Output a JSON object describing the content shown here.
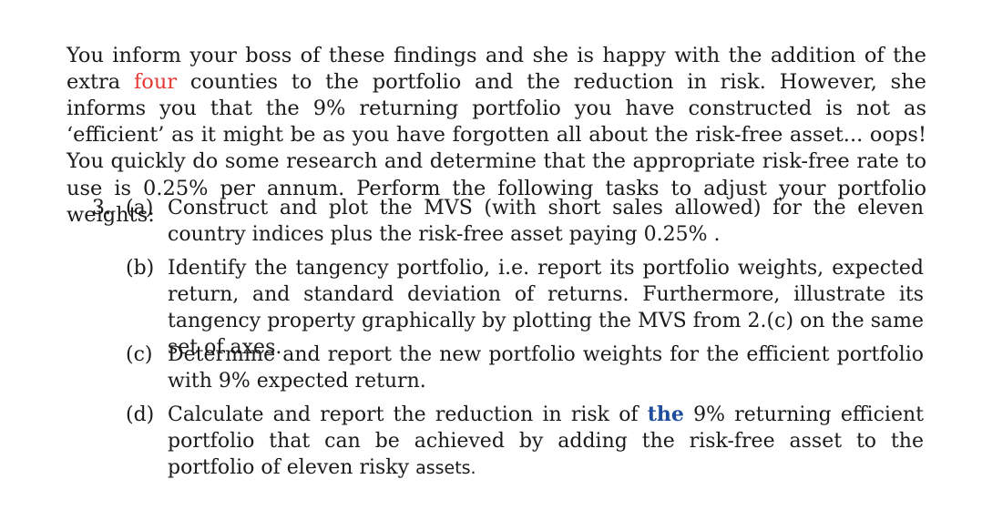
{
  "document": {
    "intro": {
      "part1": "You inform your boss of these findings and she is happy with the addition of the extra",
      "highlight": "four",
      "part2": "counties to the portfolio and the reduction in risk. However, she informs you that the 9% returning portfolio you have constructed is not as ‘efficient’ as it might be as you have forgotten all about the risk-free asset... oops! You quickly do some research and determine that the appropriate risk-free rate to use is 0.25% per annum. Perform the following tasks to adjust your portfolio weights:"
    },
    "question": {
      "number": "3.",
      "items": [
        {
          "label": "(a)",
          "text": "Construct and plot the MVS (with short sales allowed) for the eleven country indices plus the risk-free asset paying 0.25% ."
        },
        {
          "label": "(b)",
          "text": "Identify the tangency portfolio, i.e. report its portfolio weights, expected return, and standard deviation of returns. Furthermore, illustrate its tangency property graphically by plotting the MVS from 2.(c) on the same set of axes."
        },
        {
          "label": "(c)",
          "text": "Determine and report the new portfolio weights for the efficient portfolio with 9% expected return."
        },
        {
          "label": "(d)",
          "text_before": "Calculate and report the reduction in risk of ",
          "text_highlight": "the",
          "text_after": " 9% returning efficient portfolio that can be achieved by adding the risk-free asset to the portfolio of eleven risky",
          "text_last": "assets."
        }
      ]
    }
  }
}
